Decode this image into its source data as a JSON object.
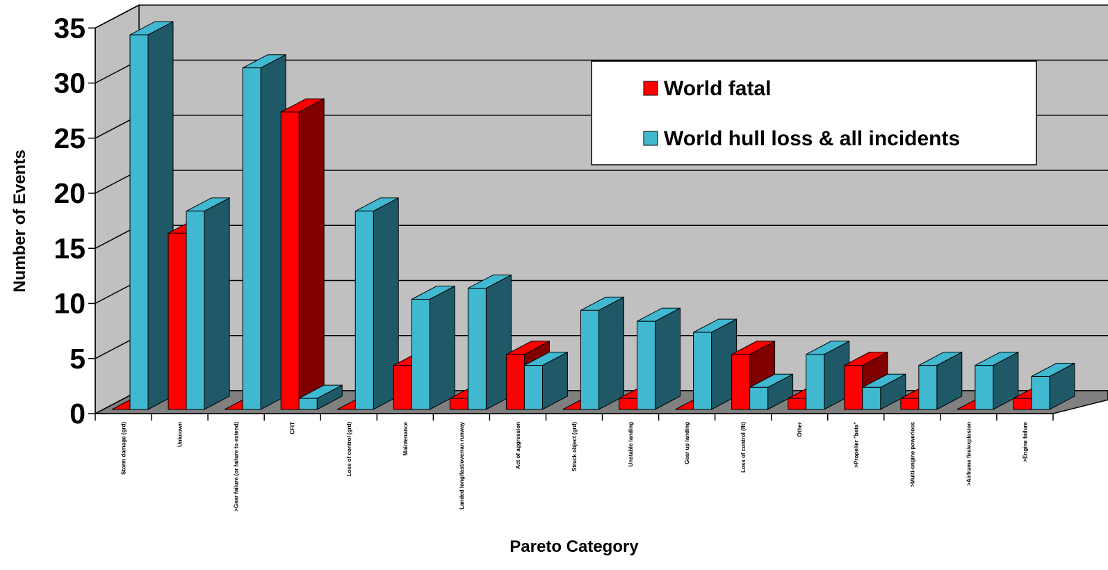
{
  "chart_data": {
    "type": "bar",
    "variant": "3d-clustered-column",
    "xlabel": "Pareto Category",
    "ylabel": "Number of Events",
    "ylim": [
      0,
      35
    ],
    "yticks": [
      "0",
      "5",
      "10",
      "15",
      "20",
      "25",
      "30",
      "35"
    ],
    "grid": true,
    "legend_position": "top-right",
    "categories": [
      "Storm damage (grd)",
      "Unknown",
      ">Gear failure (or failure to extend)",
      "CFIT",
      "Loss of control (grd)",
      "Maintenance",
      "Landed long/fast/overran runway",
      "Act of aggression",
      "Struck object (grd)",
      "Unstable landing",
      "Gear up landing",
      "Loss of control (flt)",
      "Other",
      ">Propeller \"beta\"",
      ">Multi-engine powerloss",
      ">Airframe fire/explosion",
      ">Engine failure"
    ],
    "series": [
      {
        "name": "World fatal",
        "color": "#ff0000",
        "side_color": "#800000",
        "values": [
          0,
          16,
          0,
          27,
          0,
          4,
          1,
          5,
          0,
          1,
          0,
          5,
          1,
          4,
          1,
          0,
          1
        ]
      },
      {
        "name": "World hull loss & all incidents",
        "color": "#40b8d0",
        "side_color": "#1f5866",
        "values": [
          34,
          18,
          31,
          1,
          18,
          10,
          11,
          4,
          9,
          8,
          7,
          2,
          5,
          2,
          4,
          4,
          3
        ]
      }
    ]
  }
}
